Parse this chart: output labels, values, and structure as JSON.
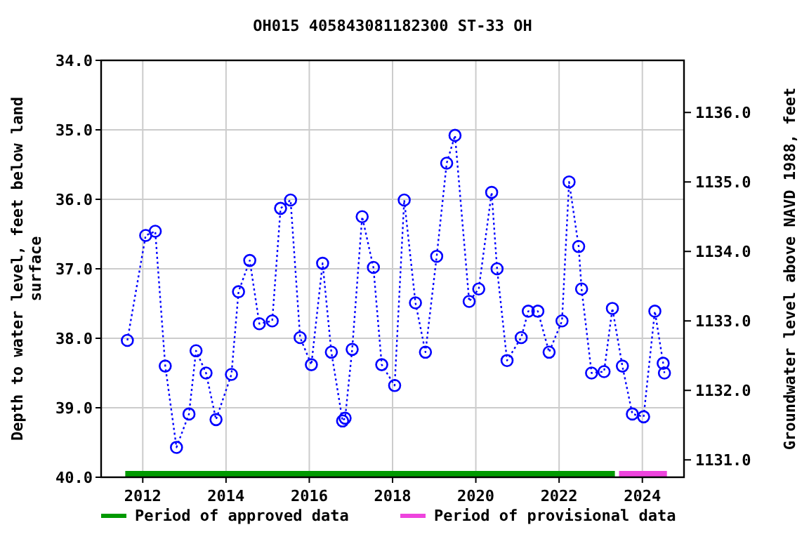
{
  "chart_data": {
    "type": "line",
    "title": "OH015 405843081182300 ST-33 OH",
    "ylabel": "Depth to water level, feet below land surface",
    "y2label": "Groundwater level above NAVD 1988, feet",
    "x": [
      2011.63,
      2012.07,
      2012.3,
      2012.54,
      2012.81,
      2013.11,
      2013.28,
      2013.52,
      2013.76,
      2014.13,
      2014.3,
      2014.57,
      2014.8,
      2015.11,
      2015.31,
      2015.55,
      2015.78,
      2016.05,
      2016.32,
      2016.53,
      2016.8,
      2016.86,
      2017.03,
      2017.27,
      2017.54,
      2017.74,
      2018.05,
      2018.28,
      2018.55,
      2018.79,
      2019.06,
      2019.3,
      2019.5,
      2019.84,
      2020.07,
      2020.38,
      2020.51,
      2020.75,
      2021.09,
      2021.26,
      2021.49,
      2021.76,
      2022.07,
      2022.24,
      2022.47,
      2022.54,
      2022.78,
      2023.08,
      2023.28,
      2023.52,
      2023.76,
      2024.03,
      2024.3,
      2024.5,
      2024.53
    ],
    "series": [
      {
        "color": "#0000ff",
        "marker": "circle",
        "line_style": "dotted",
        "values": [
          38.03,
          36.52,
          36.46,
          38.4,
          39.57,
          39.09,
          38.18,
          38.5,
          39.17,
          38.52,
          37.33,
          36.88,
          37.79,
          37.75,
          36.13,
          36.01,
          37.99,
          38.38,
          36.92,
          38.2,
          39.19,
          39.15,
          38.16,
          36.25,
          36.98,
          38.38,
          38.68,
          36.01,
          37.49,
          38.2,
          36.82,
          35.48,
          35.08,
          37.47,
          37.29,
          35.9,
          37.0,
          38.32,
          37.99,
          37.61,
          37.61,
          38.2,
          37.75,
          35.75,
          36.68,
          37.29,
          38.5,
          38.48,
          37.57,
          38.4,
          39.09,
          39.13,
          37.61,
          38.36,
          38.5
        ]
      },
      {
        "name": "Period of approved data",
        "color": "#009900",
        "marker": "none",
        "line_style": "solid",
        "x": [
          2011.58,
          2023.34
        ],
        "values": [
          39.95,
          39.95
        ]
      },
      {
        "name": "Period of provisional data",
        "color": "#ee44dd",
        "marker": "none",
        "line_style": "solid",
        "x": [
          2023.44,
          2024.59
        ],
        "values": [
          39.95,
          39.95
        ]
      }
    ],
    "xlim": [
      2011,
      2025
    ],
    "xticks": [
      2012,
      2014,
      2016,
      2018,
      2020,
      2022,
      2024
    ],
    "ylim": [
      40,
      34
    ],
    "yticks": [
      {
        "value": 34,
        "label": "34.0"
      },
      {
        "value": 35,
        "label": "35.0"
      },
      {
        "value": 36,
        "label": "36.0"
      },
      {
        "value": 37,
        "label": "37.0"
      },
      {
        "value": 38,
        "label": "38.0"
      },
      {
        "value": 39,
        "label": "39.0"
      },
      {
        "value": 40,
        "label": "40.0"
      }
    ],
    "y2lim": [
      1130.75,
      1136.75
    ],
    "y2ticks": [
      {
        "value": 1131,
        "label": "1131.0"
      },
      {
        "value": 1132,
        "label": "1132.0"
      },
      {
        "value": 1133,
        "label": "1133.0"
      },
      {
        "value": 1134,
        "label": "1134.0"
      },
      {
        "value": 1135,
        "label": "1135.0"
      },
      {
        "value": 1136,
        "label": "1136.0"
      }
    ],
    "grid": true,
    "legend": "bottom"
  }
}
